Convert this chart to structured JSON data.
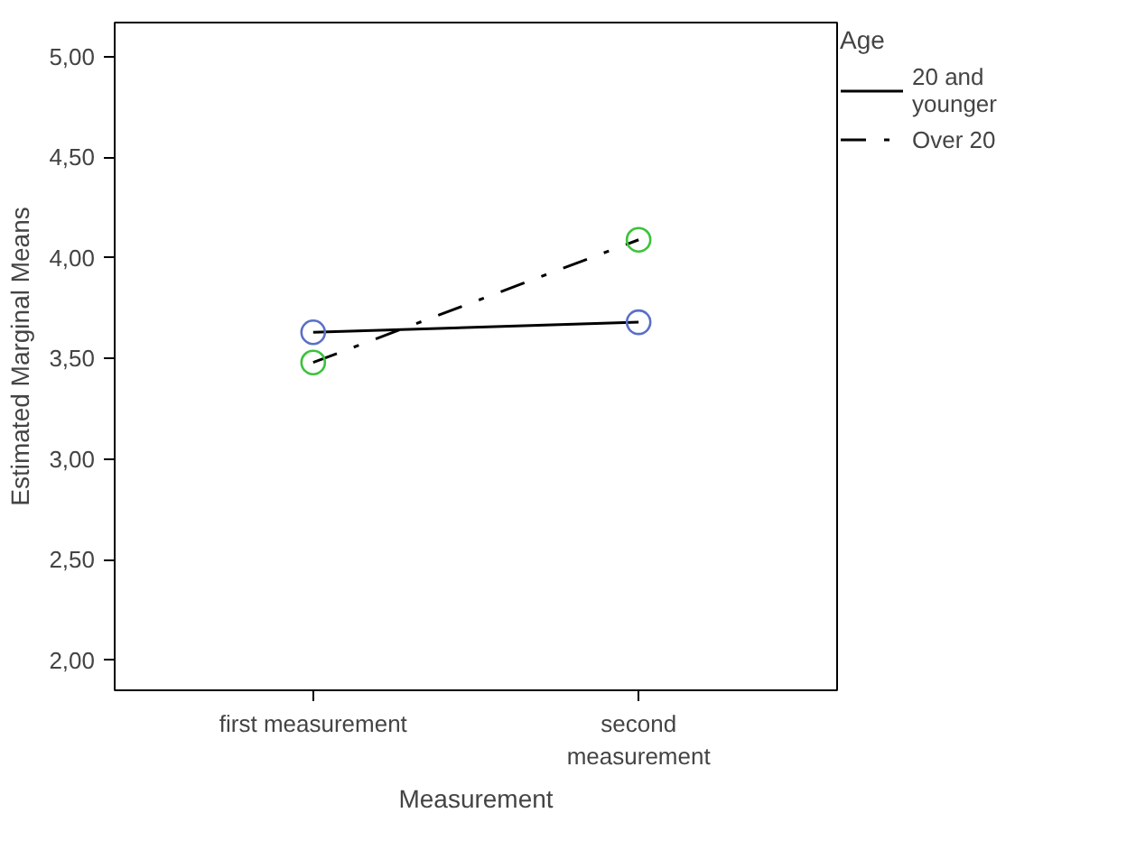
{
  "chart_data": {
    "type": "line",
    "xlabel": "Measurement",
    "ylabel": "Estimated Marginal Means",
    "legend_title": "Age",
    "categories": [
      "first measurement",
      "second\nmeasurement"
    ],
    "series": [
      {
        "name": "20 and\nyounger",
        "color": "#000000",
        "colors": [
          "#5a6fc8",
          "#5a6fc8"
        ],
        "line_style": "solid",
        "values": [
          3.63,
          3.68
        ]
      },
      {
        "name": "Over 20",
        "color": "#000000",
        "colors": [
          "#3cc23c",
          "#3cc23c"
        ],
        "line_style": "dashdot",
        "values": [
          3.48,
          4.09
        ]
      }
    ],
    "ylim": [
      1.85,
      5.17
    ],
    "yticks": [
      {
        "value": 2,
        "label": "2,00"
      },
      {
        "value": 2.5,
        "label": "2,50"
      },
      {
        "value": 3,
        "label": "3,00"
      },
      {
        "value": 3.5,
        "label": "3,50"
      },
      {
        "value": 4,
        "label": "4,00"
      },
      {
        "value": 4.5,
        "label": "4,50"
      },
      {
        "value": 5,
        "label": "5,00"
      }
    ],
    "marker": "circle",
    "grid": false,
    "legend": "top right"
  }
}
